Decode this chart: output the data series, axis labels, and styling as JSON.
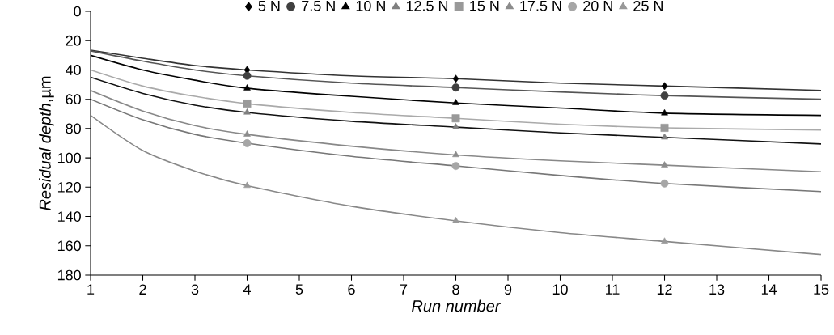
{
  "chart_data": {
    "type": "line",
    "xlabel": "Run number",
    "ylabel": "*Residual depth*,µm",
    "xlim": [
      1,
      15
    ],
    "xticks": [
      1,
      2,
      3,
      4,
      5,
      6,
      7,
      8,
      9,
      10,
      11,
      12,
      13,
      14,
      15
    ],
    "ylim": [
      180,
      0
    ],
    "yticks": [
      0,
      20,
      40,
      60,
      80,
      100,
      120,
      140,
      160,
      180
    ],
    "grid": false,
    "legend": "top",
    "series": [
      {
        "name": "5 N",
        "type": "scatter",
        "marker": "diamond",
        "color": "#000000",
        "x": [
          4,
          8,
          12
        ],
        "values": [
          40,
          46,
          51
        ]
      },
      {
        "name": "7.5 N",
        "type": "scatter",
        "marker": "circle",
        "color": "#404040",
        "x": [
          4,
          8,
          12
        ],
        "values": [
          44,
          52,
          57.5
        ]
      },
      {
        "name": "10 N",
        "type": "scatter",
        "marker": "triangle",
        "color": "#000000",
        "x": [
          4,
          8,
          12
        ],
        "values": [
          52.5,
          62.5,
          69.5
        ]
      },
      {
        "name": "12.5 N",
        "type": "scatter",
        "marker": "triangle",
        "color": "#808080",
        "x": [
          4,
          8,
          12
        ],
        "values": [
          69,
          79,
          86
        ]
      },
      {
        "name": "15 N",
        "type": "scatter",
        "marker": "square",
        "color": "#999999",
        "x": [
          4,
          8,
          12
        ],
        "values": [
          63,
          73,
          79.5
        ]
      },
      {
        "name": "17.5 N",
        "type": "scatter",
        "marker": "triangle",
        "color": "#8c8c8c",
        "x": [
          4,
          8,
          12
        ],
        "values": [
          84,
          98,
          105
        ]
      },
      {
        "name": "20 N",
        "type": "scatter",
        "marker": "circle",
        "color": "#a6a6a6",
        "x": [
          4,
          8,
          12
        ],
        "values": [
          90,
          105.5,
          117.5
        ]
      },
      {
        "name": "25 N",
        "type": "scatter",
        "marker": "triangle",
        "color": "#999999",
        "x": [
          4,
          8,
          12
        ],
        "values": [
          119,
          143,
          157
        ]
      },
      {
        "marker": "none",
        "color": "#333333",
        "x": [
          1,
          2,
          3,
          4,
          6,
          8,
          10,
          12,
          15
        ],
        "values": [
          26.5,
          32,
          37,
          40,
          44,
          46,
          49,
          51,
          54
        ]
      },
      {
        "marker": "none",
        "color": "#555555",
        "x": [
          1,
          2,
          3,
          4,
          6,
          8,
          10,
          12,
          15
        ],
        "values": [
          27,
          34,
          40,
          44,
          49,
          52,
          55,
          57.5,
          60
        ]
      },
      {
        "marker": "none",
        "color": "#000000",
        "x": [
          1,
          2,
          3,
          4,
          6,
          8,
          10,
          12,
          15
        ],
        "values": [
          30,
          40,
          47,
          52.5,
          58,
          62.5,
          66,
          69.5,
          71
        ]
      },
      {
        "marker": "none",
        "color": "#111111",
        "x": [
          1,
          2,
          3,
          4,
          6,
          8,
          10,
          12,
          15
        ],
        "values": [
          45,
          56,
          64,
          69,
          75,
          79,
          83,
          86,
          90.5
        ]
      },
      {
        "marker": "none",
        "color": "#aaaaaa",
        "x": [
          1,
          2,
          3,
          4,
          6,
          8,
          10,
          12,
          15
        ],
        "values": [
          40,
          51,
          58,
          63,
          69,
          73,
          77,
          79.5,
          81
        ]
      },
      {
        "marker": "none",
        "color": "#888888",
        "x": [
          1,
          2,
          3,
          4,
          6,
          8,
          10,
          12,
          15
        ],
        "values": [
          54,
          68,
          78,
          84,
          92,
          98,
          102,
          105,
          109.5
        ]
      },
      {
        "marker": "none",
        "color": "#777777",
        "x": [
          1,
          2,
          3,
          4,
          6,
          8,
          10,
          12,
          15
        ],
        "values": [
          60,
          74,
          84,
          90,
          99,
          105.5,
          112,
          117.5,
          123
        ]
      },
      {
        "marker": "none",
        "color": "#888888",
        "x": [
          1,
          2,
          3,
          4,
          6,
          8,
          10,
          12,
          15
        ],
        "values": [
          71,
          95,
          109,
          119,
          133,
          143,
          151,
          157,
          166
        ]
      }
    ]
  }
}
